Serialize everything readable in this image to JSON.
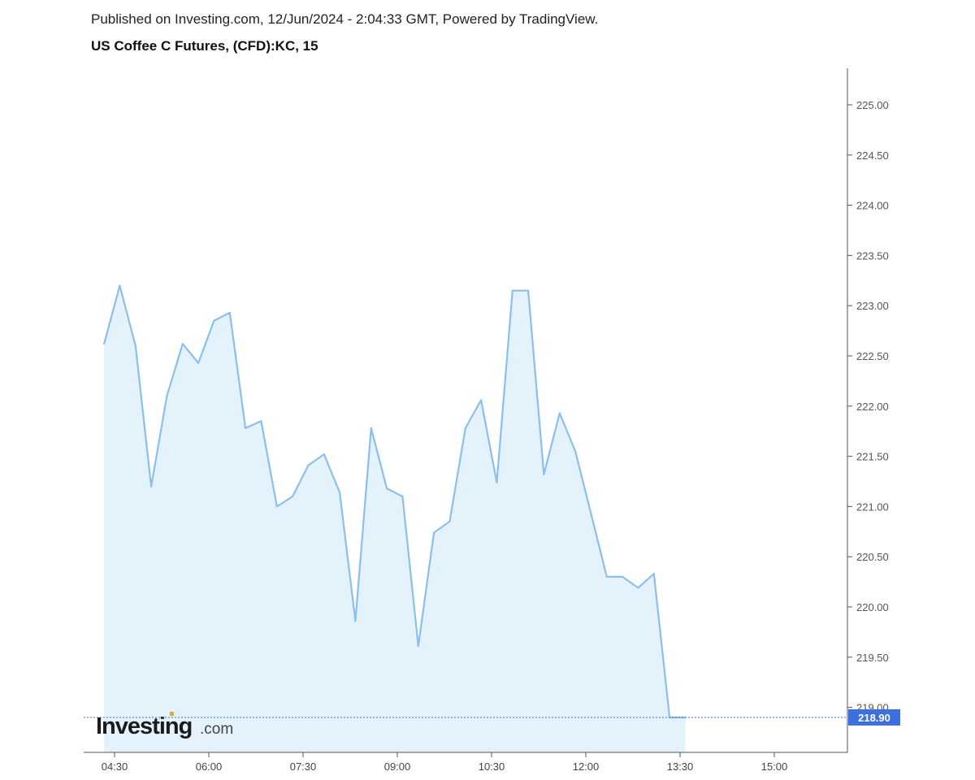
{
  "header": {
    "published": "Published on Investing.com, 12/Jun/2024 - 2:04:33 GMT, Powered by TradingView.",
    "title": "US Coffee C Futures, (CFD):KC, 15"
  },
  "logo": {
    "main": "Investing",
    "suffix": ".com"
  },
  "colors": {
    "line": "#8bbfee",
    "area": "#e3f2fb",
    "price_tag": "#3d6fe0",
    "axis": "#555555"
  },
  "chart_data": {
    "type": "area",
    "title": "US Coffee C Futures, (CFD):KC, 15",
    "xlabel": "",
    "ylabel": "",
    "ylim": [
      218.5,
      225.4
    ],
    "xlim": [
      "04:15",
      "15:45"
    ],
    "interval_minutes": 15,
    "x_ticks": [
      "04:30",
      "06:00",
      "07:30",
      "09:00",
      "10:30",
      "12:00",
      "13:30",
      "15:00"
    ],
    "y_ticks": [
      "225.00",
      "224.50",
      "224.00",
      "223.50",
      "223.00",
      "222.50",
      "222.00",
      "221.50",
      "221.00",
      "220.50",
      "220.00",
      "219.50",
      "219.00"
    ],
    "grid": false,
    "last_price": "218.90",
    "series": [
      {
        "x": [
          "04:20",
          "04:35",
          "04:50",
          "05:05",
          "05:20",
          "05:35",
          "05:50",
          "06:05",
          "06:20",
          "06:35",
          "06:50",
          "07:05",
          "07:20",
          "07:35",
          "07:50",
          "08:05",
          "08:20",
          "08:35",
          "08:50",
          "09:05",
          "09:20",
          "09:35",
          "09:50",
          "10:05",
          "10:20",
          "10:35",
          "10:50",
          "11:05",
          "11:20",
          "11:35",
          "11:50",
          "12:05",
          "12:20",
          "12:35",
          "12:50",
          "13:05",
          "13:20",
          "13:35"
        ],
        "values": [
          222.62,
          223.2,
          222.6,
          221.2,
          222.1,
          222.62,
          222.43,
          222.85,
          222.93,
          221.78,
          221.85,
          221.0,
          221.1,
          221.41,
          221.52,
          221.14,
          219.86,
          221.78,
          221.18,
          221.1,
          219.61,
          220.74,
          220.85,
          221.78,
          222.06,
          221.24,
          223.15,
          223.15,
          221.32,
          221.93,
          221.55,
          220.93,
          220.3,
          220.3,
          220.19,
          220.33,
          218.9,
          218.9
        ]
      }
    ]
  }
}
